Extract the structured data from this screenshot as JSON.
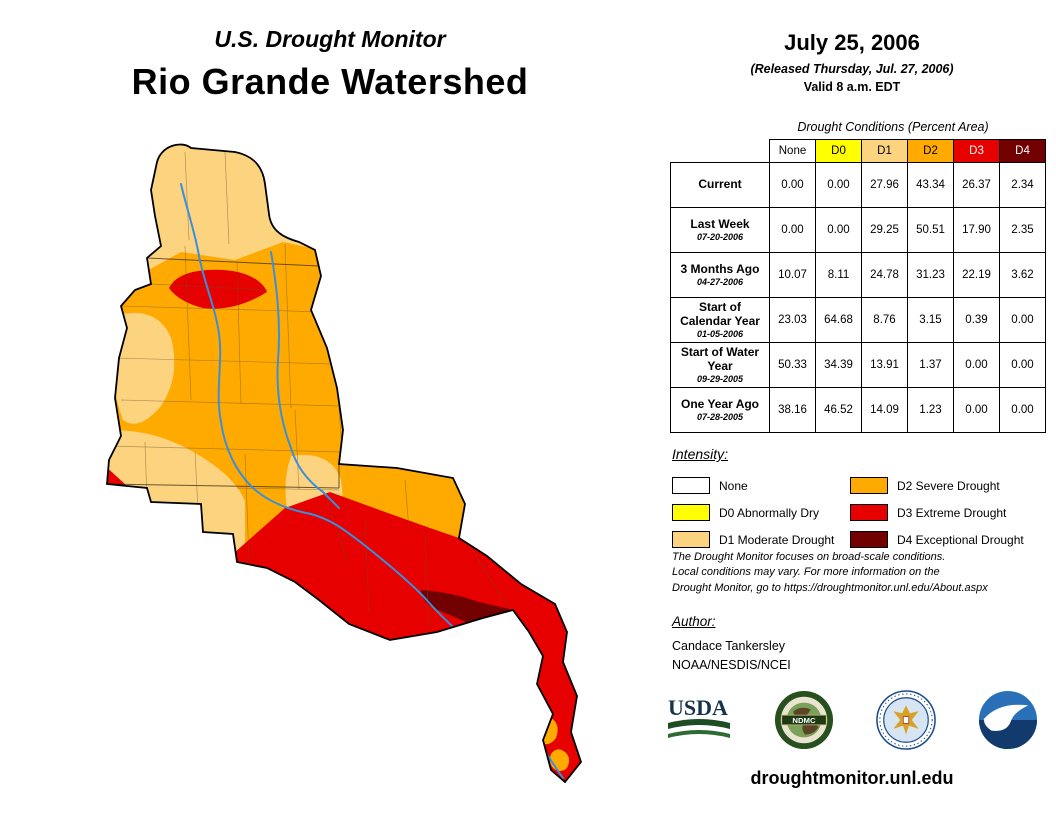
{
  "header": {
    "title": "U.S. Drought Monitor",
    "subtitle": "Rio Grande Watershed"
  },
  "date_block": {
    "date": "July 25, 2006",
    "released": "(Released Thursday, Jul. 27, 2006)",
    "valid": "Valid 8 a.m. EDT"
  },
  "table": {
    "title": "Drought Conditions (Percent Area)",
    "columns": [
      {
        "label": "None",
        "bg": "#FFFFFF",
        "fg": "#000000"
      },
      {
        "label": "D0",
        "bg": "#FFFF00",
        "fg": "#000000"
      },
      {
        "label": "D1",
        "bg": "#FCD37F",
        "fg": "#000000"
      },
      {
        "label": "D2",
        "bg": "#FFAA00",
        "fg": "#000000"
      },
      {
        "label": "D3",
        "bg": "#E60000",
        "fg": "#FFFFFF"
      },
      {
        "label": "D4",
        "bg": "#730000",
        "fg": "#FFFFFF"
      }
    ],
    "rows": [
      {
        "label": "Current",
        "date": "",
        "values": [
          "0.00",
          "0.00",
          "27.96",
          "43.34",
          "26.37",
          "2.34"
        ]
      },
      {
        "label": "Last Week",
        "date": "07-20-2006",
        "values": [
          "0.00",
          "0.00",
          "29.25",
          "50.51",
          "17.90",
          "2.35"
        ]
      },
      {
        "label": "3 Months Ago",
        "date": "04-27-2006",
        "values": [
          "10.07",
          "8.11",
          "24.78",
          "31.23",
          "22.19",
          "3.62"
        ]
      },
      {
        "label": "Start of Calendar Year",
        "date": "01-05-2006",
        "values": [
          "23.03",
          "64.68",
          "8.76",
          "3.15",
          "0.39",
          "0.00"
        ]
      },
      {
        "label": "Start of Water Year",
        "date": "09-29-2005",
        "values": [
          "50.33",
          "34.39",
          "13.91",
          "1.37",
          "0.00",
          "0.00"
        ]
      },
      {
        "label": "One Year Ago",
        "date": "07-28-2005",
        "values": [
          "38.16",
          "46.52",
          "14.09",
          "1.23",
          "0.00",
          "0.00"
        ]
      }
    ]
  },
  "legend": {
    "title": "Intensity:",
    "items": [
      {
        "label": "None",
        "color": "#FFFFFF"
      },
      {
        "label": "D0 Abnormally Dry",
        "color": "#FFFF00"
      },
      {
        "label": "D1 Moderate Drought",
        "color": "#FCD37F"
      },
      {
        "label": "D2 Severe Drought",
        "color": "#FFAA00"
      },
      {
        "label": "D3 Extreme Drought",
        "color": "#E60000"
      },
      {
        "label": "D4 Exceptional Drought",
        "color": "#730000"
      }
    ]
  },
  "disclaimer": {
    "line1": "The Drought Monitor focuses on broad-scale conditions.",
    "line2": "Local conditions may vary. For more information on the",
    "line3": "Drought Monitor, go to https://droughtmonitor.unl.edu/About.aspx"
  },
  "author": {
    "title": "Author:",
    "name": "Candace Tankersley",
    "org": "NOAA/NESDIS/NCEI"
  },
  "footer": {
    "url": "droughtmonitor.unl.edu"
  },
  "map": {
    "region": "Rio Grande Watershed",
    "river_color": "#3B8EDB",
    "logos": [
      "usda-logo",
      "ndmc-logo",
      "commerce-logo",
      "noaa-logo"
    ]
  }
}
